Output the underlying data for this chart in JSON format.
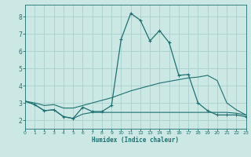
{
  "title": "",
  "xlabel": "Humidex (Indice chaleur)",
  "xlim": [
    0,
    23
  ],
  "ylim": [
    1.5,
    8.7
  ],
  "yticks": [
    2,
    3,
    4,
    5,
    6,
    7,
    8
  ],
  "xticks": [
    0,
    1,
    2,
    3,
    4,
    5,
    6,
    7,
    8,
    9,
    10,
    11,
    12,
    13,
    14,
    15,
    16,
    17,
    18,
    19,
    20,
    21,
    22,
    23
  ],
  "bg_color": "#cce8e5",
  "grid_color": "#aacfcc",
  "line_color": "#1e7070",
  "line1_x": [
    0,
    1,
    2,
    3,
    4,
    5,
    6,
    7,
    8,
    9,
    10,
    11,
    12,
    13,
    14,
    15,
    16,
    17,
    18,
    19,
    20,
    21,
    22,
    23
  ],
  "line1_y": [
    3.1,
    2.9,
    2.55,
    2.6,
    2.2,
    2.1,
    2.75,
    2.5,
    2.5,
    2.85,
    6.7,
    8.2,
    7.8,
    6.6,
    7.2,
    6.5,
    4.6,
    4.65,
    3.0,
    2.55,
    2.3,
    2.3,
    2.3,
    2.2
  ],
  "line2_x": [
    0,
    1,
    2,
    3,
    4,
    5,
    6,
    7,
    8,
    9,
    10,
    11,
    12,
    13,
    14,
    15,
    16,
    17,
    18,
    19,
    20,
    21,
    22,
    23
  ],
  "line2_y": [
    3.1,
    3.0,
    2.85,
    2.9,
    2.7,
    2.7,
    2.85,
    3.0,
    3.15,
    3.3,
    3.5,
    3.7,
    3.85,
    4.0,
    4.15,
    4.25,
    4.35,
    4.45,
    4.5,
    4.6,
    4.3,
    3.0,
    2.6,
    2.3
  ],
  "line3_x": [
    0,
    1,
    2,
    3,
    4,
    5,
    6,
    7,
    8,
    9,
    10,
    11,
    12,
    13,
    14,
    15,
    16,
    17,
    18,
    19,
    20,
    21,
    22,
    23
  ],
  "line3_y": [
    3.1,
    2.9,
    2.55,
    2.6,
    2.2,
    2.1,
    2.35,
    2.45,
    2.45,
    2.45,
    2.45,
    2.45,
    2.45,
    2.45,
    2.45,
    2.45,
    2.45,
    2.45,
    2.45,
    2.45,
    2.45,
    2.45,
    2.4,
    2.3
  ]
}
